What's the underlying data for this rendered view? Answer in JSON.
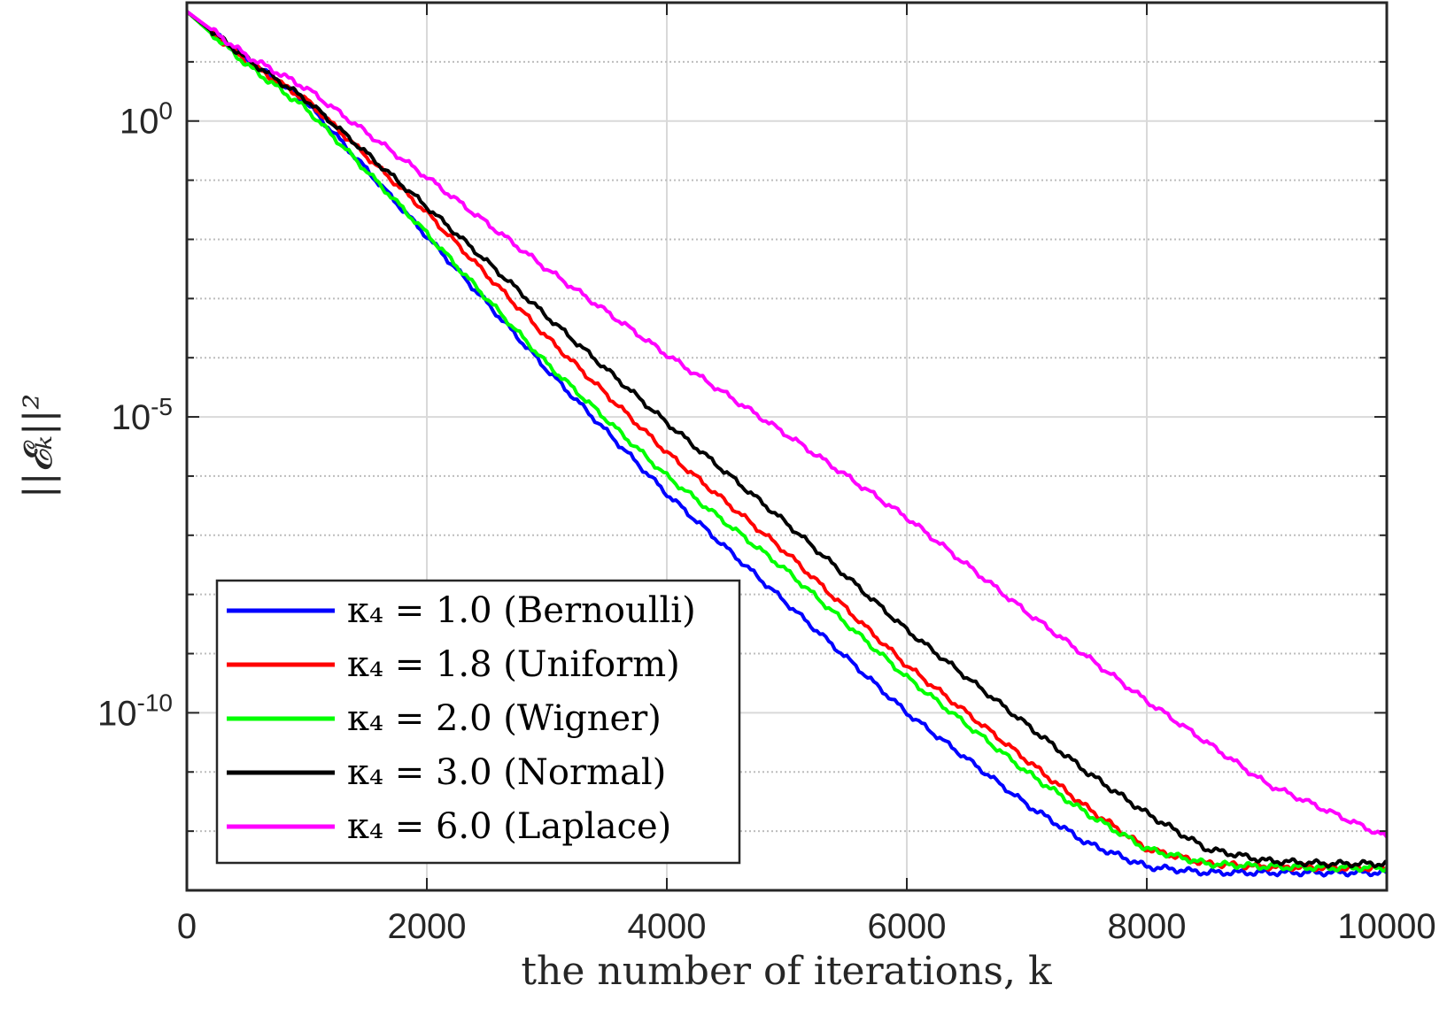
{
  "chart_data": {
    "type": "line",
    "yscale": "log",
    "title": "",
    "xlabel": "the number of iterations, k",
    "ylabel": "||𝓔ₖ||²",
    "xlim": [
      0,
      10000
    ],
    "ylim_exponent": [
      -13.0,
      2.0
    ],
    "xticks": [
      0,
      2000,
      4000,
      6000,
      8000,
      10000
    ],
    "xtick_labels": [
      "0",
      "2000",
      "4000",
      "6000",
      "8000",
      "10000"
    ],
    "yticks_exponent": [
      0,
      -5,
      -10
    ],
    "ytick_labels": [
      {
        "base": "10",
        "exp": "0"
      },
      {
        "base": "10",
        "exp": "-5"
      },
      {
        "base": "10",
        "exp": "-10"
      }
    ],
    "minor_y_exponents": [
      -12,
      -11,
      -9,
      -8,
      -7,
      -6,
      -4,
      -3,
      -2,
      -1,
      1
    ],
    "grid": true,
    "legend_position": "bottom-left",
    "series": [
      {
        "name": "κ4 = 1.0 (Bernoulli)",
        "label": "κ₄ = 1.0 (Bernoulli)",
        "color": "#0000ff",
        "x": [
          0,
          500,
          1000,
          2000,
          3000,
          4000,
          5000,
          6000,
          7000,
          7500,
          8000,
          8500,
          9000,
          9500,
          10000
        ],
        "log10_y": [
          1.85,
          1.05,
          0.3,
          -1.95,
          -4.2,
          -6.3,
          -8.15,
          -10.0,
          -11.55,
          -12.2,
          -12.6,
          -12.7,
          -12.7,
          -12.7,
          -12.7
        ]
      },
      {
        "name": "κ4 = 1.8 (Uniform)",
        "label": "κ₄ = 1.8 (Uniform)",
        "color": "#ff0000",
        "x": [
          0,
          500,
          1000,
          2000,
          3000,
          4000,
          5000,
          6000,
          7000,
          7500,
          8000,
          8500,
          9000,
          9500,
          10000
        ],
        "log10_y": [
          1.85,
          1.0,
          0.35,
          -1.55,
          -3.65,
          -5.6,
          -7.3,
          -9.2,
          -10.8,
          -11.6,
          -12.3,
          -12.55,
          -12.6,
          -12.62,
          -12.62
        ]
      },
      {
        "name": "κ4 = 2.0 (Wigner)",
        "label": "κ₄ = 2.0 (Wigner)",
        "color": "#00ff00",
        "x": [
          0,
          500,
          1000,
          2000,
          3000,
          4000,
          5000,
          6000,
          7000,
          7500,
          8000,
          8500,
          9000,
          9500,
          10000
        ],
        "log10_y": [
          1.85,
          0.95,
          0.2,
          -1.9,
          -4.1,
          -6.0,
          -7.6,
          -9.4,
          -11.0,
          -11.7,
          -12.3,
          -12.55,
          -12.6,
          -12.62,
          -12.62
        ]
      },
      {
        "name": "κ4 = 3.0 (Normal)",
        "label": "κ₄ = 3.0 (Normal)",
        "color": "#000000",
        "x": [
          0,
          500,
          1000,
          2000,
          3000,
          4000,
          5000,
          6000,
          7000,
          7500,
          8000,
          8500,
          9000,
          9500,
          10000
        ],
        "log10_y": [
          1.85,
          1.05,
          0.35,
          -1.45,
          -3.3,
          -5.1,
          -6.8,
          -8.6,
          -10.2,
          -11.0,
          -11.7,
          -12.3,
          -12.5,
          -12.55,
          -12.55
        ]
      },
      {
        "name": "κ4 = 6.0 (Laplace)",
        "label": "κ₄ = 6.0 (Laplace)",
        "color": "#ff00ff",
        "x": [
          0,
          500,
          1000,
          2000,
          3000,
          4000,
          5000,
          6000,
          7000,
          8000,
          9000,
          10000
        ],
        "log10_y": [
          1.85,
          1.1,
          0.55,
          -0.95,
          -2.5,
          -3.95,
          -5.3,
          -6.7,
          -8.3,
          -9.8,
          -11.2,
          -12.1
        ]
      }
    ]
  }
}
